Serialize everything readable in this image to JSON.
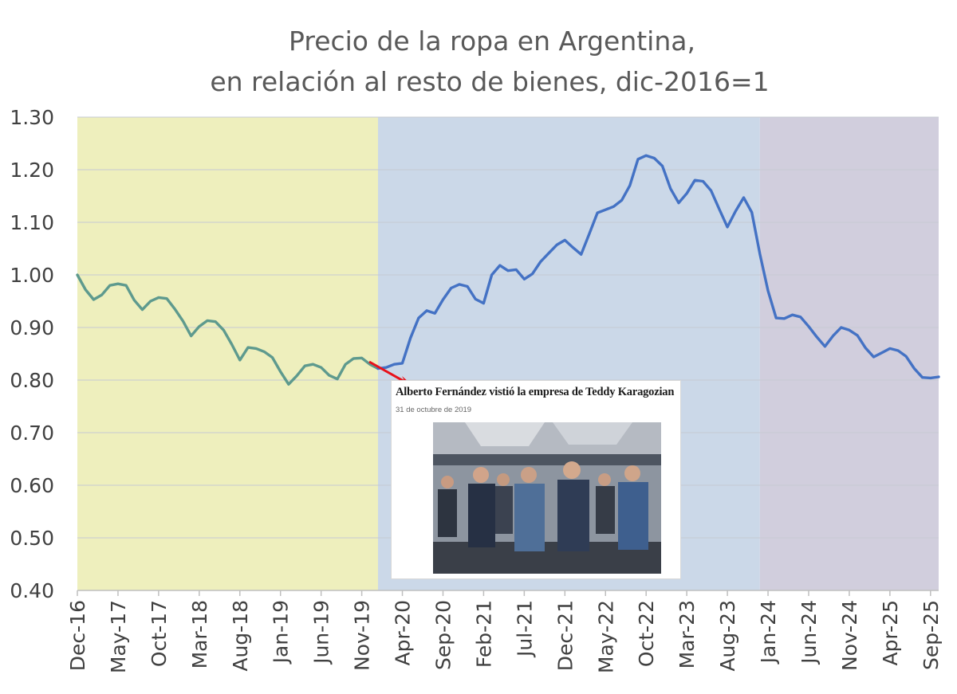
{
  "chart_data": {
    "type": "line",
    "title": [
      "Precio de la ropa en Argentina,",
      "en relación al resto de bienes, dic-2016=1"
    ],
    "ylim": [
      0.4,
      1.3
    ],
    "yticks": [
      "0.40",
      "0.50",
      "0.60",
      "0.70",
      "0.80",
      "0.90",
      "1.00",
      "1.10",
      "1.20",
      "1.30"
    ],
    "grid": true,
    "x": [
      "Dec-16",
      "Jan-17",
      "Feb-17",
      "Mar-17",
      "Apr-17",
      "May-17",
      "Jun-17",
      "Jul-17",
      "Aug-17",
      "Sep-17",
      "Oct-17",
      "Nov-17",
      "Dec-17",
      "Jan-18",
      "Feb-18",
      "Mar-18",
      "Apr-18",
      "May-18",
      "Jun-18",
      "Jul-18",
      "Aug-18",
      "Sep-18",
      "Oct-18",
      "Nov-18",
      "Dec-18",
      "Jan-19",
      "Feb-19",
      "Mar-19",
      "Apr-19",
      "May-19",
      "Jun-19",
      "Jul-19",
      "Aug-19",
      "Sep-19",
      "Oct-19",
      "Nov-19",
      "Dec-19",
      "Jan-20",
      "Feb-20",
      "Mar-20",
      "Apr-20",
      "May-20",
      "Jun-20",
      "Jul-20",
      "Aug-20",
      "Sep-20",
      "Oct-20",
      "Nov-20",
      "Dec-20",
      "Jan-21",
      "Feb-21",
      "Mar-21",
      "Apr-21",
      "May-21",
      "Jun-21",
      "Jul-21",
      "Aug-21",
      "Sep-21",
      "Oct-21",
      "Nov-21",
      "Dec-21",
      "Jan-22",
      "Feb-22",
      "Mar-22",
      "Apr-22",
      "May-22",
      "Jun-22",
      "Jul-22",
      "Aug-22",
      "Sep-22",
      "Oct-22",
      "Nov-22",
      "Dec-22",
      "Jan-23",
      "Feb-23",
      "Mar-23",
      "Apr-23",
      "May-23",
      "Jun-23",
      "Jul-23",
      "Aug-23",
      "Sep-23",
      "Oct-23",
      "Nov-23",
      "Dec-23",
      "Jan-24",
      "Feb-24",
      "Mar-24",
      "Apr-24",
      "May-24",
      "Jun-24",
      "Jul-24",
      "Aug-24",
      "Sep-24",
      "Oct-24",
      "Nov-24",
      "Dec-24",
      "Jan-25",
      "Feb-25",
      "Mar-25",
      "Apr-25",
      "May-25",
      "Jun-25",
      "Jul-25",
      "Aug-25",
      "Sep-25",
      "Oct-25"
    ],
    "xtick_labels": [
      "Dec-16",
      "May-17",
      "Oct-17",
      "Mar-18",
      "Aug-18",
      "Jan-19",
      "Jun-19",
      "Nov-19",
      "Apr-20",
      "Sep-20",
      "Feb-21",
      "Jul-21",
      "Dec-21",
      "May-22",
      "Oct-22",
      "Mar-23",
      "Aug-23",
      "Jan-24",
      "Jun-24",
      "Nov-24",
      "Apr-25",
      "Sep-25"
    ],
    "series": [
      {
        "color": "#4472C4",
        "values": [
          1.0,
          0.972,
          0.953,
          0.962,
          0.98,
          0.983,
          0.98,
          0.952,
          0.934,
          0.95,
          0.957,
          0.955,
          0.935,
          0.912,
          0.884,
          0.902,
          0.913,
          0.911,
          0.895,
          0.868,
          0.838,
          0.862,
          0.86,
          0.854,
          0.843,
          0.816,
          0.792,
          0.808,
          0.827,
          0.83,
          0.824,
          0.809,
          0.802,
          0.83,
          0.841,
          0.842,
          0.83,
          0.822,
          0.824,
          0.83,
          0.832,
          0.88,
          0.918,
          0.932,
          0.927,
          0.953,
          0.975,
          0.982,
          0.978,
          0.954,
          0.946,
          1.0,
          1.018,
          1.008,
          1.01,
          0.992,
          1.002,
          1.025,
          1.041,
          1.057,
          1.066,
          1.052,
          1.039,
          1.078,
          1.118,
          1.124,
          1.13,
          1.142,
          1.17,
          1.22,
          1.227,
          1.222,
          1.207,
          1.164,
          1.137,
          1.155,
          1.18,
          1.178,
          1.16,
          1.125,
          1.091,
          1.121,
          1.147,
          1.119,
          1.04,
          0.97,
          0.918,
          0.917,
          0.924,
          0.92,
          0.902,
          0.882,
          0.864,
          0.884,
          0.9,
          0.895,
          0.885,
          0.861,
          0.844,
          0.852,
          0.86,
          0.856,
          0.845,
          0.822,
          0.805,
          0.804,
          0.806
        ]
      }
    ],
    "background_bands": [
      {
        "from": "Dec-16",
        "to": "Jan-20",
        "color": "#eeefbd"
      },
      {
        "from": "Jan-20",
        "to": "Dec-23",
        "color": "#cbd8e8"
      },
      {
        "from": "Dec-23",
        "to": "Oct-25",
        "color": "#d1cedd"
      }
    ],
    "segment_colors": [
      "#5e9a8e",
      "#4472C4"
    ],
    "axis_color": "#bfbfbf"
  },
  "inset": {
    "headline": "Alberto Fernández vistió la empresa de Teddy Karagozian",
    "date": "31 de octubre de 2019"
  },
  "annotation": {
    "arrow_color": "#e8121b"
  }
}
